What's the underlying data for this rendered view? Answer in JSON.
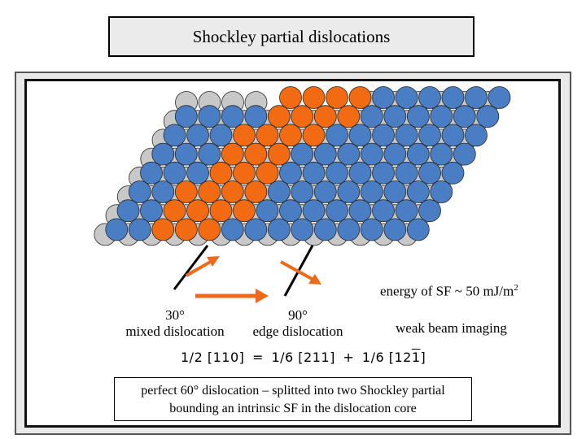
{
  "title": "Shockley partial dislocations",
  "labels": {
    "mixed_angle": "30°",
    "mixed_name": "mixed dislocation",
    "edge_angle": "90°",
    "edge_name": "edge dislocation",
    "energy_text": "energy of SF ~ 50 mJ/m",
    "energy_exp": "2",
    "imaging": "weak beam imaging"
  },
  "formula": {
    "perfect": "1/2 [110]",
    "eq": "=",
    "partial1": "1/6 [211]",
    "plus": "+",
    "partial2": "1/6 [121]",
    "overbar_char": "1"
  },
  "summary": {
    "line1": "perfect 60° dislocation – splitted into two Shockley partial",
    "line2": "bounding an intrinsic SF in the dislocation core"
  },
  "colors": {
    "atom_blue": "#4a7ec4",
    "atom_orange": "#f26a11",
    "atom_gray": "#c8c8c8",
    "arrow_orange": "#ee6a1a"
  }
}
